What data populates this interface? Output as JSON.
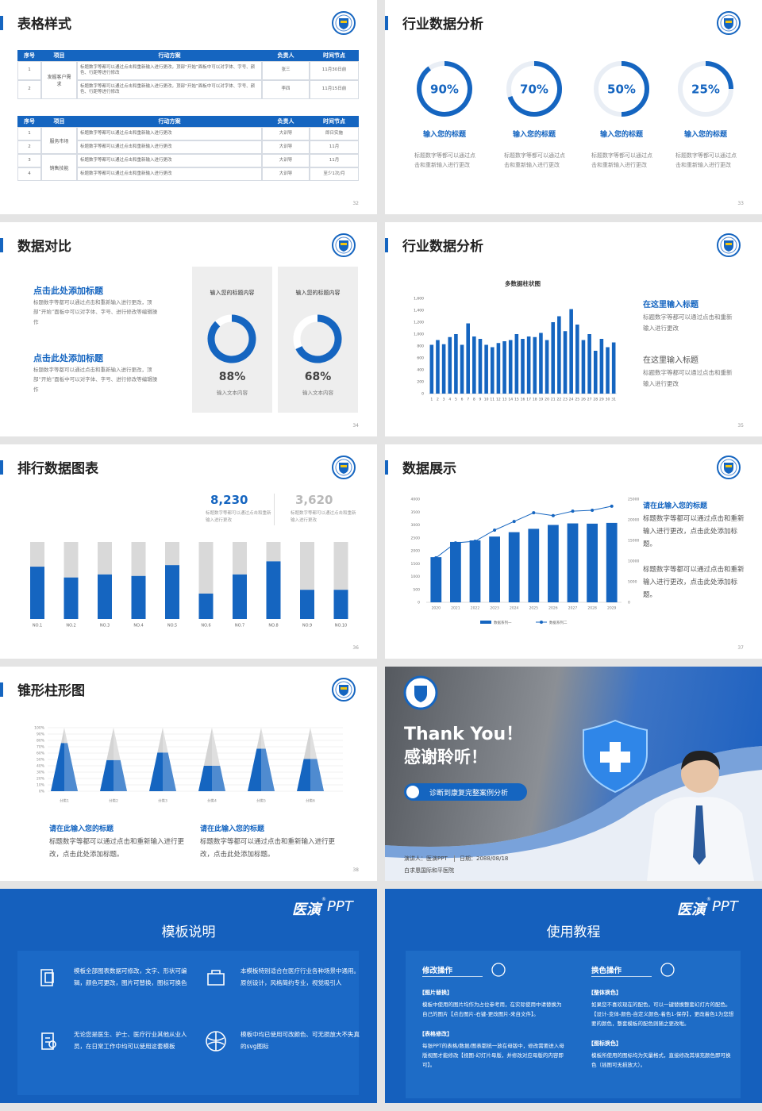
{
  "slides": [
    {
      "title": "表格样式",
      "number": "32",
      "tables": [
        {
          "header": [
            "序号",
            "项目",
            "行动方案",
            "负责人",
            "时间节点"
          ],
          "groups": [
            {
              "project": "发掘客户需求",
              "rows": [
                {
                  "no": "1",
                  "plan": "标题数字等都可以通过点击和重新输入进行更改，顶部“开始”面板中可以对字体、字号、颜色、行距等进行修改",
                  "owner": "张三",
                  "time": "11月30日前"
                },
                {
                  "no": "2",
                  "plan": "标题数字等都可以通过点击和重新输入进行更改，顶部“开始”面板中可以对字体、字号、颜色、行距等进行修改",
                  "owner": "李四",
                  "time": "11月15日前"
                }
              ]
            }
          ]
        },
        {
          "header": [
            "序号",
            "项目",
            "行动方案",
            "负责人",
            "时间节点"
          ],
          "groups": [
            {
              "project": "服务市场",
              "rows": [
                {
                  "no": "1",
                  "plan": "标题数字等都可以通过点击和重新输入进行更改",
                  "owner": "大训导",
                  "time": "即日实施"
                },
                {
                  "no": "2",
                  "plan": "标题数字等都可以通过点击和重新输入进行更改",
                  "owner": "大训导",
                  "time": "11月"
                }
              ]
            },
            {
              "project": "销售技能",
              "rows": [
                {
                  "no": "3",
                  "plan": "标题数字等都可以通过点击和重新输入进行更改",
                  "owner": "大训导",
                  "time": "11月"
                },
                {
                  "no": "4",
                  "plan": "标题数字等都可以通过点击和重新输入进行更改",
                  "owner": "大训导",
                  "time": "至少1次/月"
                }
              ]
            }
          ]
        }
      ]
    },
    {
      "title": "行业数据分析",
      "number": "33",
      "chart": {
        "type": "ring",
        "values": [
          90,
          70,
          50,
          25
        ],
        "value_labels": [
          "90%",
          "70%",
          "50%",
          "25%"
        ],
        "color": "#1565c0"
      },
      "items": [
        {
          "title": "输入您的标题",
          "text": "标题数字等都可以通过点击和重新输入进行更改"
        },
        {
          "title": "输入您的标题",
          "text": "标题数字等都可以通过点击和重新输入进行更改"
        },
        {
          "title": "输入您的标题",
          "text": "标题数字等都可以通过点击和重新输入进行更改"
        },
        {
          "title": "输入您的标题",
          "text": "标题数字等都可以通过点击和重新输入进行更改"
        }
      ]
    },
    {
      "title": "数据对比",
      "number": "34",
      "blocks": [
        {
          "heading": "点击此处添加标题",
          "text": "标题数字等都可以通过点击和重新输入进行更改，顶部“开始”面板中可以对字体、字号、进行修改等编辑操作"
        },
        {
          "heading": "点击此处添加标题",
          "text": "标题数字等都可以通过点击和重新输入进行更改，顶部“开始”面板中可以对字体、字号、进行修改等编辑操作"
        }
      ],
      "cards": [
        {
          "heading": "输入您的标题内容",
          "caption": "输入文本内容"
        },
        {
          "heading": "输入您的标题内容",
          "caption": "输入文本内容"
        }
      ],
      "chart": {
        "type": "ring",
        "values": [
          88,
          68
        ],
        "value_labels": [
          "88%",
          "68%"
        ],
        "color": "#1565c0"
      }
    },
    {
      "title": "行业数据分析",
      "number": "35",
      "chart": {
        "type": "bar",
        "title": "多数据柱状图",
        "categories": [
          "1",
          "2",
          "3",
          "4",
          "5",
          "6",
          "7",
          "8",
          "9",
          "10",
          "11",
          "12",
          "13",
          "14",
          "15",
          "16",
          "17",
          "18",
          "19",
          "20",
          "21",
          "22",
          "23",
          "24",
          "25",
          "26",
          "27",
          "28",
          "29",
          "30",
          "31"
        ],
        "values": [
          820,
          900,
          830,
          950,
          1000,
          820,
          1180,
          960,
          920,
          820,
          780,
          850,
          880,
          900,
          1000,
          920,
          960,
          950,
          1020,
          900,
          1200,
          1300,
          1050,
          1420,
          1160,
          900,
          1000,
          720,
          920,
          780,
          860
        ],
        "color": "#1565c0",
        "ylim": [
          0,
          1600
        ],
        "yticks": [
          0,
          200,
          400,
          600,
          800,
          {
            "value": 1000,
            "label": "1,000"
          },
          {
            "value": 1200,
            "label": "1,200"
          },
          {
            "value": 1400,
            "label": "1,400"
          },
          {
            "value": 1600,
            "label": "1,600"
          }
        ]
      },
      "notes": [
        {
          "heading": "在这里输入标题",
          "text": "标题数字等都可以通过点击和重新输入进行更改"
        },
        {
          "heading": "在这里输入标题",
          "text": "标题数字等都可以通过点击和重新输入进行更改"
        }
      ]
    },
    {
      "title": "排行数据图表",
      "number": "36",
      "stats": [
        {
          "value": "8,230",
          "text": "标题数字等都可以通过点击和重新输入进行更改"
        },
        {
          "value": "3,620",
          "text": "标题数字等都可以通过点击和重新输入进行更改"
        }
      ],
      "chart": {
        "type": "stacked-bar",
        "categories": [
          "NO.1",
          "NO.2",
          "NO.3",
          "NO.4",
          "NO.5",
          "NO.6",
          "NO.7",
          "NO.8",
          "NO.9",
          "NO.10"
        ],
        "series": [
          {
            "color": "#1565c0",
            "values": [
              68,
              54,
              58,
              56,
              70,
              33,
              58,
              75,
              38,
              38
            ]
          },
          {
            "color": "#d9d9d9",
            "values": [
              32,
              46,
              42,
              44,
              30,
              67,
              42,
              25,
              62,
              62
            ]
          }
        ],
        "ylim": [
          0,
          100
        ]
      }
    },
    {
      "title": "数据展示",
      "number": "37",
      "chart": {
        "type": "bar-line",
        "categories": [
          "2020",
          "2021",
          "2022",
          "2023",
          "2024",
          "2025",
          "2026",
          "2027",
          "2028",
          "2029"
        ],
        "series": [
          {
            "name": "数据系列一",
            "color": "#1565c0",
            "values": [
              1750,
              2340,
              2400,
              2550,
              2720,
              2850,
              3000,
              3060,
              3050,
              3080
            ]
          },
          {
            "name": "数据系列二",
            "color": "#1565c0",
            "axis": "y2",
            "values": [
              10800,
              14400,
              14800,
              17500,
              19600,
              21700,
              21000,
              22100,
              22300,
              23300
            ]
          }
        ],
        "ylim": [
          0,
          4000
        ],
        "yticks": [
          0,
          500,
          1000,
          1500,
          2000,
          2500,
          3000,
          3500,
          4000
        ],
        "y2lim": [
          0,
          25000
        ],
        "y2ticks": [
          0,
          5000,
          10000,
          15000,
          20000,
          25000
        ]
      },
      "notes": [
        {
          "heading": "请在此输入您的标题",
          "text": "标题数字等都可以通过点击和重新输入进行更改，点击此处添加标题。"
        },
        {
          "text": "标题数字等都可以通过点击和重新输入进行更改，点击此处添加标题。"
        }
      ]
    },
    {
      "title": "锥形柱形图",
      "number": "38",
      "chart": {
        "type": "pyramid",
        "categories": [
          "分类1",
          "分类2",
          "分类3",
          "分类4",
          "分类5",
          "分类6"
        ],
        "series": [
          {
            "color": "#1565c0",
            "values": [
              76,
              49,
              61,
              40,
              67,
              51
            ]
          },
          {
            "color": "#d4d4d4",
            "values": [
              24,
              51,
              39,
              60,
              33,
              49
            ]
          }
        ],
        "ylim": [
          0,
          100
        ],
        "yticks": [
          {
            "value": 0,
            "label": "0%"
          },
          {
            "value": 10,
            "label": "10%"
          },
          {
            "value": 20,
            "label": "20%"
          },
          {
            "value": 30,
            "label": "30%"
          },
          {
            "value": 40,
            "label": "40%"
          },
          {
            "value": 50,
            "label": "50%"
          },
          {
            "value": 60,
            "label": "60%"
          },
          {
            "value": 70,
            "label": "70%"
          },
          {
            "value": 80,
            "label": "80%"
          },
          {
            "value": 90,
            "label": "90%"
          },
          {
            "value": 100,
            "label": "100%"
          }
        ]
      },
      "notes": [
        {
          "heading": "请在此输入您的标题",
          "text": "标题数字等都可以通过点击和重新输入进行更改，点击此处添加标题。"
        },
        {
          "heading": "请在此输入您的标题",
          "text": "标题数字等都可以通过点击和重新输入进行更改，点击此处添加标题。"
        }
      ]
    },
    {
      "title": "Thank You！",
      "subtitle": "感谢聆听！",
      "button": "诊断到康复完整案例分析",
      "speaker": "演讲人：医演PPT",
      "date": "日期：2088/08/18",
      "org": "白求恩国际和平医院"
    },
    {
      "brand": {
        "name": "医演",
        "mark": "®",
        "suffix": "PPT"
      },
      "title": "模板说明",
      "items": [
        "模板全部图表数据可修改，文字、形状可编辑，颜色可更改，图片可替换，图标可换色",
        "本模板特别适合在医疗行业各种场景中通用。原创设计，风格简约专业，视觉吸引人",
        "无论您是医生、护士、医疗行业其他从业人员，在日常工作中均可以使用这套模板",
        "模板中均已使用可改颜色、可无损放大不失真的svg图标"
      ]
    },
    {
      "brand": {
        "name": "医演",
        "mark": "®",
        "suffix": "PPT"
      },
      "title": "使用教程",
      "sections": [
        {
          "heading": "修改操作",
          "parts": [
            {
              "label": "【图片替换】",
              "text": "模板中使用的图片均作为占位参考用，在实际使用中请替换为自己的图片【点击图片-右键-更改图片-来自文件】。"
            },
            {
              "label": "【表格修改】",
              "text": "每张PPT的表格/数据/图表都统一放在母版中，修改需要进入母版视图才能修改【视图-幻灯片母版，并修改对应母版的内容即可】。"
            }
          ]
        },
        {
          "heading": "换色操作",
          "parts": [
            {
              "label": "【整体换色】",
              "text": "如果您不喜欢现在的配色，可以一键替换整套幻灯片的配色。【设计-变体-颜色-自定义颜色-着色1-保存】，更改着色1为您想要的颜色，整套模板的配色则随之更改啦。"
            },
            {
              "label": "【图标换色】",
              "text": "模板所使用的图标均为矢量格式，直接修改其填充颜色即可换色（插图可无损放大）。"
            }
          ]
        }
      ]
    }
  ]
}
